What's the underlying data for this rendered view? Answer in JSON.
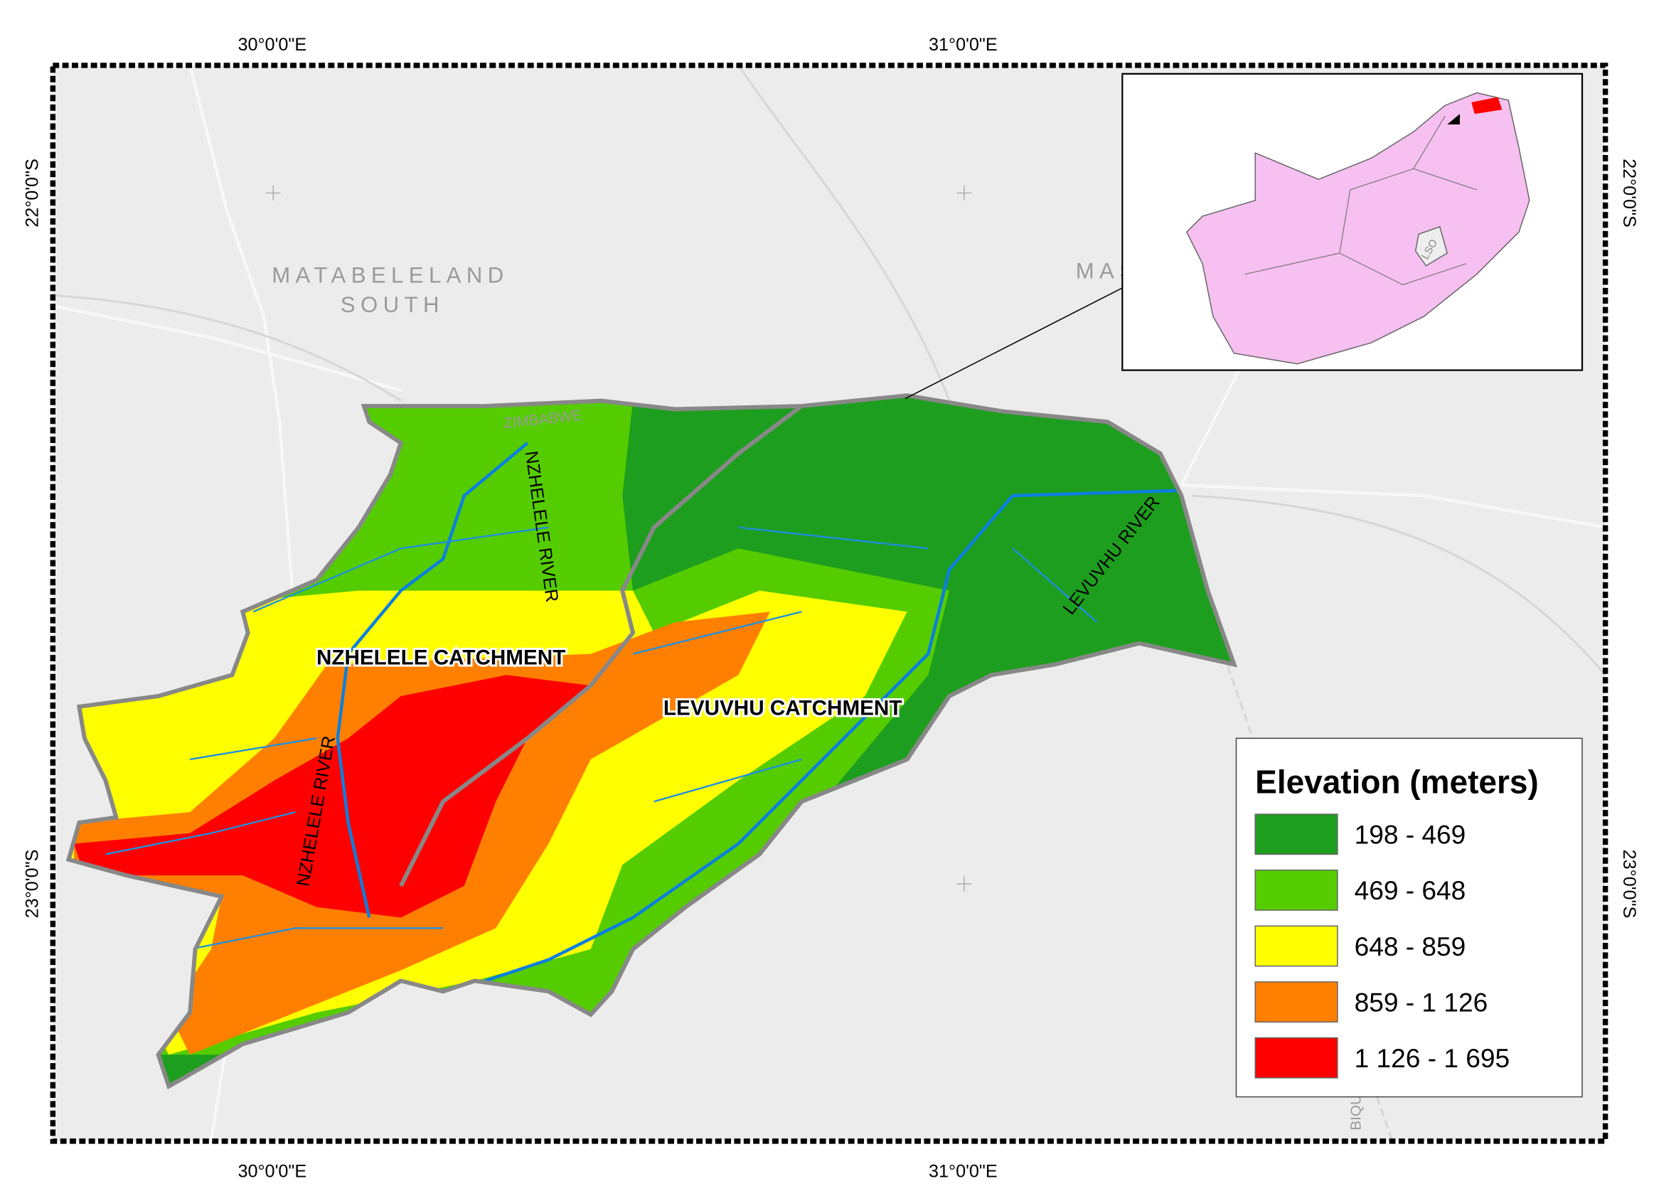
{
  "grid_labels": {
    "top": [
      "30°0'0\"E",
      "31°0'0\"E"
    ],
    "bottom": [
      "30°0'0\"E",
      "31°0'0\"E"
    ],
    "left": [
      "22°0'0\"S",
      "23°0'0\"S"
    ],
    "right": [
      "22°0'0\"S",
      "23°0'0\"S"
    ]
  },
  "place_labels": {
    "region1_line1": "MATABELELAND",
    "region1_line2": "SOUTH",
    "region2": "MASVIN",
    "country": "ZIMBABWE",
    "corner": "BIQUE",
    "inset": "LSO"
  },
  "rivers": [
    "NZHELELE RIVER",
    "NZHELELE RIVER",
    "LEVUVHU RIVER"
  ],
  "catchments": [
    "NZHELELE CATCHMENT",
    "LEVUVHU CATCHMENT"
  ],
  "legend": {
    "title": "Elevation (meters)",
    "items": [
      {
        "label": "198 - 469",
        "color": "#1e9e1e"
      },
      {
        "label": "469 - 648",
        "color": "#55cc00"
      },
      {
        "label": "648 - 859",
        "color": "#ffff00"
      },
      {
        "label": "859 - 1 126",
        "color": "#ff8000"
      },
      {
        "label": "1 126 - 1 695",
        "color": "#ff0000"
      }
    ]
  }
}
